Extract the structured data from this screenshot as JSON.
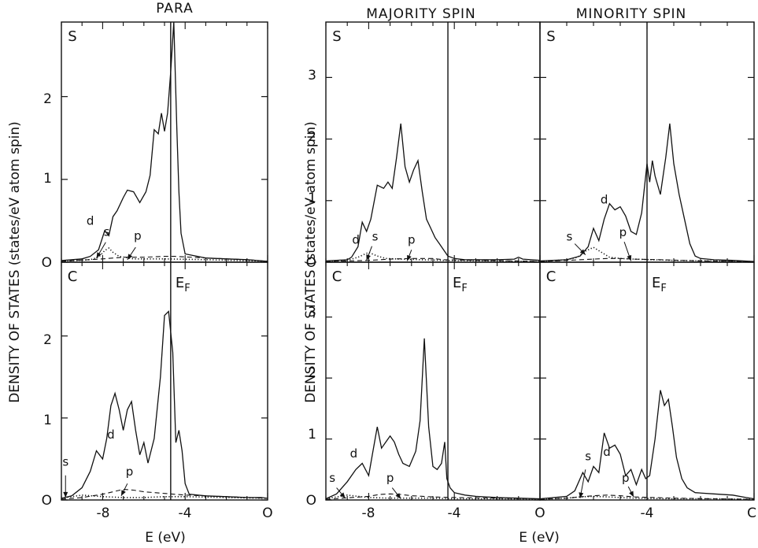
{
  "titles": {
    "para": "PARA",
    "majority": "MAJORITY SPIN",
    "minority": "MINORITY SPIN"
  },
  "ylabel_left": "DENSITY OF STATES (states/eV atom spin)",
  "ylabel_right": "DENSITY OF STATES (states/eV atom spin)",
  "xlabel_left": "E (eV)",
  "xlabel_right": "E (eV)",
  "fermi_label": "E",
  "fermi_sub": "F",
  "panel_letters": {
    "s": "S",
    "c": "C"
  },
  "orbital_labels": {
    "s": "s",
    "p": "p",
    "d": "d"
  },
  "tick_labels": {
    "x_para": [
      "-8",
      "-4",
      "O"
    ],
    "x_spin_left": [
      "-8",
      "-4",
      "O"
    ],
    "x_spin_right": [
      "-4",
      "C"
    ],
    "y_para": [
      "O",
      "1",
      "2"
    ],
    "y_spin": [
      "O",
      "1",
      "2",
      "3"
    ]
  },
  "chart_data": [
    {
      "type": "line",
      "title": "PARA",
      "panel": "S",
      "xlabel": "E (eV)",
      "ylabel": "DENSITY OF STATES (states/eV atom spin)",
      "xlim": [
        -10,
        0
      ],
      "ylim": [
        0,
        2.9
      ],
      "fermi_energy": -4.7,
      "series": [
        {
          "name": "total",
          "style": "solid",
          "x": [
            -10,
            -9,
            -8.6,
            -8.2,
            -7.9,
            -7.7,
            -7.5,
            -7.3,
            -7.0,
            -6.8,
            -6.5,
            -6.2,
            -5.9,
            -5.7,
            -5.5,
            -5.3,
            -5.15,
            -5.0,
            -4.85,
            -4.7,
            -4.55,
            -4.4,
            -4.3,
            -4.2,
            -4.0,
            -3.0,
            -2.0,
            -1.0,
            0
          ],
          "y": [
            0.02,
            0.04,
            0.07,
            0.15,
            0.38,
            0.32,
            0.55,
            0.62,
            0.78,
            0.87,
            0.85,
            0.72,
            0.85,
            1.05,
            1.6,
            1.55,
            1.8,
            1.58,
            1.8,
            2.3,
            2.9,
            1.6,
            0.85,
            0.35,
            0.1,
            0.05,
            0.04,
            0.03,
            0.01
          ]
        },
        {
          "name": "s",
          "style": "dotted",
          "x": [
            -10,
            -8.6,
            -8.2,
            -7.9,
            -7.7,
            -7.5,
            -7.2,
            -6.5,
            -5,
            -3,
            0
          ],
          "y": [
            0.01,
            0.03,
            0.06,
            0.14,
            0.17,
            0.12,
            0.07,
            0.04,
            0.04,
            0.03,
            0.01
          ]
        },
        {
          "name": "p",
          "style": "dashed",
          "x": [
            -10,
            -8,
            -7,
            -6,
            -5,
            -4.5,
            -3,
            -1,
            0
          ],
          "y": [
            0.01,
            0.04,
            0.06,
            0.06,
            0.07,
            0.07,
            0.05,
            0.03,
            0.01
          ]
        }
      ]
    },
    {
      "type": "line",
      "title": "PARA",
      "panel": "C",
      "xlabel": "E (eV)",
      "ylabel": "DENSITY OF STATES (states/eV atom spin)",
      "xlim": [
        -10,
        0
      ],
      "ylim": [
        0,
        2.9
      ],
      "fermi_energy": -4.7,
      "series": [
        {
          "name": "total",
          "style": "solid",
          "x": [
            -10,
            -9.5,
            -9.0,
            -8.6,
            -8.3,
            -8.0,
            -7.8,
            -7.6,
            -7.4,
            -7.2,
            -7.0,
            -6.8,
            -6.6,
            -6.4,
            -6.2,
            -6.0,
            -5.8,
            -5.5,
            -5.2,
            -5.0,
            -4.8,
            -4.6,
            -4.45,
            -4.3,
            -4.15,
            -4.0,
            -3.8,
            -3.0,
            -2.0,
            -1.0,
            -0.3,
            0
          ],
          "y": [
            0.02,
            0.05,
            0.15,
            0.35,
            0.6,
            0.5,
            0.75,
            1.15,
            1.3,
            1.1,
            0.85,
            1.1,
            1.2,
            0.85,
            0.55,
            0.7,
            0.45,
            0.75,
            1.5,
            2.25,
            2.3,
            1.8,
            0.7,
            0.85,
            0.6,
            0.2,
            0.07,
            0.05,
            0.04,
            0.03,
            0.03,
            0.02
          ]
        },
        {
          "name": "s",
          "style": "dotted",
          "x": [
            -10,
            -9.5,
            -9.0,
            -8.5,
            -8.0,
            -7.0,
            -6.0,
            -5.0,
            -4.0,
            -2.0,
            0
          ],
          "y": [
            0.02,
            0.04,
            0.06,
            0.05,
            0.04,
            0.03,
            0.03,
            0.04,
            0.04,
            0.03,
            0.02
          ]
        },
        {
          "name": "p",
          "style": "dashed",
          "x": [
            -10,
            -9,
            -8,
            -7.5,
            -7,
            -6.5,
            -6,
            -5,
            -4,
            -2,
            0
          ],
          "y": [
            0.01,
            0.03,
            0.07,
            0.1,
            0.13,
            0.12,
            0.1,
            0.08,
            0.06,
            0.04,
            0.02
          ]
        }
      ]
    },
    {
      "type": "line",
      "title": "MAJORITY SPIN",
      "panel": "S",
      "xlabel": "E (eV)",
      "xlim": [
        -10,
        0
      ],
      "ylim": [
        0,
        3.9
      ],
      "fermi_energy": -4.3,
      "series": [
        {
          "name": "total",
          "style": "solid",
          "x": [
            -10,
            -9,
            -8.8,
            -8.5,
            -8.3,
            -8.1,
            -7.9,
            -7.6,
            -7.3,
            -7.1,
            -6.9,
            -6.7,
            -6.5,
            -6.3,
            -6.1,
            -5.9,
            -5.7,
            -5.5,
            -5.3,
            -5.1,
            -4.9,
            -4.7,
            -4.5,
            -4.3,
            -4.0,
            -3.5,
            -2.0,
            -1.2,
            -1.0,
            -0.8,
            0
          ],
          "y": [
            0.02,
            0.04,
            0.08,
            0.25,
            0.65,
            0.5,
            0.7,
            1.25,
            1.2,
            1.3,
            1.2,
            1.7,
            2.25,
            1.55,
            1.3,
            1.5,
            1.65,
            1.15,
            0.7,
            0.55,
            0.4,
            0.3,
            0.2,
            0.1,
            0.06,
            0.04,
            0.04,
            0.05,
            0.08,
            0.05,
            0.03
          ]
        },
        {
          "name": "s",
          "style": "dotted",
          "x": [
            -10,
            -9,
            -8.5,
            -8.0,
            -7.6,
            -7.2,
            -6.5,
            -5.5,
            -4.5,
            -2,
            0
          ],
          "y": [
            0.01,
            0.03,
            0.08,
            0.16,
            0.1,
            0.06,
            0.05,
            0.04,
            0.03,
            0.02,
            0.01
          ]
        },
        {
          "name": "p",
          "style": "dashed",
          "x": [
            -10,
            -8,
            -7,
            -6,
            -5,
            -4.5,
            -3,
            -1,
            0
          ],
          "y": [
            0.01,
            0.03,
            0.05,
            0.06,
            0.06,
            0.04,
            0.03,
            0.02,
            0.01
          ]
        }
      ]
    },
    {
      "type": "line",
      "title": "MAJORITY SPIN",
      "panel": "C",
      "xlabel": "E (eV)",
      "xlim": [
        -10,
        0
      ],
      "ylim": [
        0,
        3.9
      ],
      "fermi_energy": -4.3,
      "series": [
        {
          "name": "total",
          "style": "solid",
          "x": [
            -10,
            -9.5,
            -9.0,
            -8.6,
            -8.3,
            -8.0,
            -7.8,
            -7.6,
            -7.4,
            -7.2,
            -7.0,
            -6.8,
            -6.6,
            -6.4,
            -6.1,
            -5.8,
            -5.6,
            -5.4,
            -5.2,
            -5.0,
            -4.8,
            -4.6,
            -4.45,
            -4.35,
            -4.2,
            -4.0,
            -3.5,
            -3.0,
            -2.0,
            -1.0,
            0
          ],
          "y": [
            0.02,
            0.1,
            0.3,
            0.5,
            0.6,
            0.4,
            0.8,
            1.2,
            0.85,
            0.95,
            1.05,
            0.95,
            0.75,
            0.6,
            0.55,
            0.8,
            1.3,
            2.65,
            1.2,
            0.55,
            0.5,
            0.6,
            0.95,
            0.35,
            0.2,
            0.12,
            0.08,
            0.06,
            0.04,
            0.03,
            0.02
          ]
        },
        {
          "name": "s",
          "style": "dotted",
          "x": [
            -10,
            -9.5,
            -9.0,
            -8.5,
            -8.0,
            -7.0,
            -6.0,
            -5.0,
            -4.0,
            -2.0,
            0
          ],
          "y": [
            0.02,
            0.05,
            0.08,
            0.06,
            0.04,
            0.03,
            0.03,
            0.03,
            0.02,
            0.02,
            0.01
          ]
        },
        {
          "name": "p",
          "style": "dashed",
          "x": [
            -10,
            -8,
            -7.5,
            -7,
            -6.5,
            -6,
            -5,
            -4,
            -2,
            0
          ],
          "y": [
            0.01,
            0.06,
            0.09,
            0.1,
            0.09,
            0.07,
            0.05,
            0.04,
            0.03,
            0.02
          ]
        }
      ]
    },
    {
      "type": "line",
      "title": "MINORITY SPIN",
      "panel": "S",
      "xlim": [
        -8,
        0
      ],
      "ylim": [
        0,
        3.9
      ],
      "fermi_energy": -4.0,
      "series": [
        {
          "name": "total",
          "style": "solid",
          "x": [
            -8,
            -7,
            -6.5,
            -6.2,
            -6.0,
            -5.8,
            -5.6,
            -5.4,
            -5.2,
            -5.0,
            -4.8,
            -4.6,
            -4.4,
            -4.2,
            -4.0,
            -3.9,
            -3.8,
            -3.7,
            -3.5,
            -3.3,
            -3.15,
            -3.0,
            -2.8,
            -2.6,
            -2.4,
            -2.2,
            -2.0,
            -1.5,
            -0.8,
            0
          ],
          "y": [
            0.02,
            0.04,
            0.1,
            0.25,
            0.55,
            0.35,
            0.7,
            0.95,
            0.85,
            0.9,
            0.75,
            0.5,
            0.45,
            0.8,
            1.6,
            1.3,
            1.65,
            1.4,
            1.1,
            1.7,
            2.25,
            1.6,
            1.1,
            0.7,
            0.3,
            0.1,
            0.06,
            0.04,
            0.03,
            0.01
          ]
        },
        {
          "name": "s",
          "style": "dotted",
          "x": [
            -8,
            -7,
            -6.6,
            -6.3,
            -6.0,
            -5.7,
            -5.4,
            -5.0,
            -4.5,
            -3,
            0
          ],
          "y": [
            0.01,
            0.04,
            0.08,
            0.18,
            0.24,
            0.16,
            0.08,
            0.06,
            0.05,
            0.03,
            0.01
          ]
        },
        {
          "name": "p",
          "style": "dashed",
          "x": [
            -8,
            -7,
            -6,
            -5.5,
            -5,
            -4.5,
            -3.5,
            -2,
            0
          ],
          "y": [
            0.01,
            0.03,
            0.05,
            0.06,
            0.06,
            0.05,
            0.04,
            0.02,
            0.01
          ]
        }
      ]
    },
    {
      "type": "line",
      "title": "MINORITY SPIN",
      "panel": "C",
      "xlim": [
        -8,
        0
      ],
      "ylim": [
        0,
        3.9
      ],
      "fermi_energy": -4.0,
      "series": [
        {
          "name": "total",
          "style": "solid",
          "x": [
            -8,
            -7,
            -6.7,
            -6.4,
            -6.2,
            -6.0,
            -5.8,
            -5.6,
            -5.4,
            -5.2,
            -5.0,
            -4.8,
            -4.6,
            -4.4,
            -4.2,
            -4.05,
            -3.9,
            -3.7,
            -3.5,
            -3.35,
            -3.2,
            -3.05,
            -2.9,
            -2.7,
            -2.5,
            -2.2,
            -1.5,
            -0.8,
            -0.3,
            0
          ],
          "y": [
            0.02,
            0.06,
            0.15,
            0.45,
            0.3,
            0.55,
            0.45,
            1.1,
            0.85,
            0.9,
            0.75,
            0.4,
            0.5,
            0.25,
            0.5,
            0.35,
            0.4,
            1.0,
            1.8,
            1.55,
            1.65,
            1.2,
            0.7,
            0.35,
            0.2,
            0.12,
            0.1,
            0.08,
            0.04,
            0.02
          ]
        },
        {
          "name": "s",
          "style": "dotted",
          "x": [
            -8,
            -7,
            -6.5,
            -6.0,
            -5.5,
            -5.0,
            -4.5,
            -3.0,
            -1.5,
            0
          ],
          "y": [
            0.01,
            0.03,
            0.05,
            0.06,
            0.05,
            0.04,
            0.03,
            0.02,
            0.02,
            0.01
          ]
        },
        {
          "name": "p",
          "style": "dashed",
          "x": [
            -8,
            -7,
            -6.5,
            -6.0,
            -5.5,
            -5.0,
            -4.5,
            -3.0,
            -1.5,
            0
          ],
          "y": [
            0.01,
            0.03,
            0.05,
            0.07,
            0.08,
            0.07,
            0.05,
            0.03,
            0.02,
            0.01
          ]
        }
      ]
    }
  ]
}
